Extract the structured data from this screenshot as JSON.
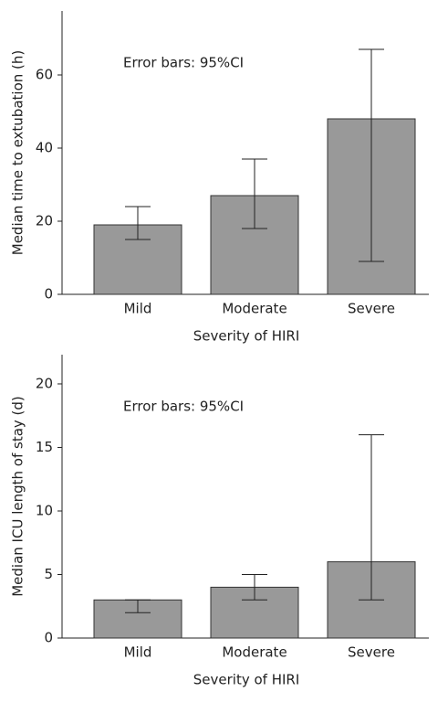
{
  "chart_data": [
    {
      "type": "bar",
      "annotation": "Error bars: 95%CI",
      "x_label": "Severity of HIRI",
      "y_label": "Median time to extubation (h)",
      "categories": [
        "Mild",
        "Moderate",
        "Severe"
      ],
      "values": [
        19,
        27,
        48
      ],
      "ci_lower": [
        15,
        18,
        9
      ],
      "ci_upper": [
        24,
        37,
        67
      ],
      "color": "#999999",
      "ylim": [
        0,
        77.5
      ],
      "yticks": [
        0,
        20,
        40,
        60
      ]
    },
    {
      "type": "bar",
      "annotation": "Error bars: 95%CI",
      "x_label": "Severity of HIRI",
      "y_label": "Median ICU length of stay (d)",
      "categories": [
        "Mild",
        "Moderate",
        "Severe"
      ],
      "values": [
        3,
        4,
        6
      ],
      "ci_lower": [
        2,
        3,
        3
      ],
      "ci_upper": [
        3,
        5,
        16
      ],
      "color": "#999999",
      "ylim": [
        0,
        22.3
      ],
      "yticks": [
        0,
        5,
        10,
        15,
        20
      ]
    }
  ]
}
